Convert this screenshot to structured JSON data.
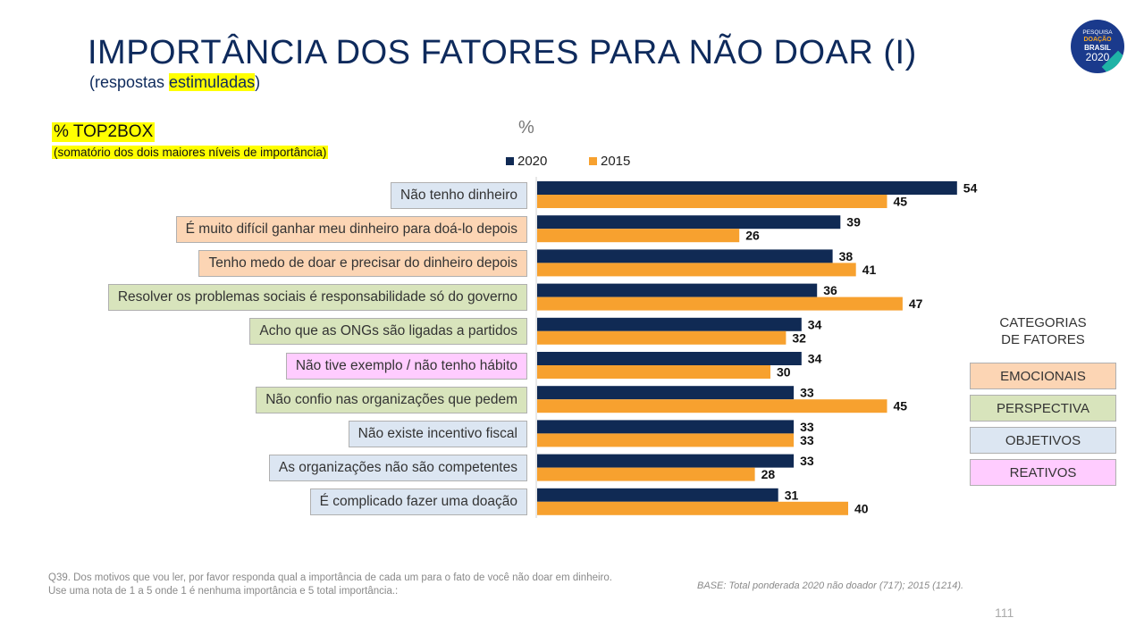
{
  "header": {
    "title": "IMPORTÂNCIA DOS FATORES PARA NÃO DOAR (I)",
    "subtitle_open": "(respostas ",
    "subtitle_highlight": "estimuladas",
    "subtitle_close": ")"
  },
  "logo": {
    "line1": "PESQUISA",
    "line2": "DOAÇÃO",
    "line3": "BRASIL",
    "line4": "2020"
  },
  "measure": {
    "label": "% TOP2BOX",
    "sublabel": "(somatório dos dois maiores níveis de importância)"
  },
  "chart_data": {
    "type": "bar",
    "orientation": "horizontal",
    "unit_label": "%",
    "categories": [
      "Não tenho dinheiro",
      "É muito difícil ganhar meu dinheiro para doá-lo depois",
      "Tenho medo de doar e precisar do dinheiro depois",
      "Resolver os problemas sociais é responsabilidade só do governo",
      "Acho que as ONGs são ligadas a partidos",
      "Não tive exemplo / não tenho hábito",
      "Não confio nas organizações que pedem",
      "Não existe incentivo fiscal",
      "As organizações não são competentes",
      "É complicado fazer uma doação"
    ],
    "category_groups": [
      "objetivos",
      "emocionais",
      "emocionais",
      "perspectiva",
      "perspectiva",
      "reativos",
      "perspectiva",
      "objetivos",
      "objetivos",
      "objetivos"
    ],
    "series": [
      {
        "name": "2020",
        "color": "#102a54",
        "values": [
          54,
          39,
          38,
          36,
          34,
          34,
          33,
          33,
          33,
          31
        ]
      },
      {
        "name": "2015",
        "color": "#f7a12f",
        "values": [
          45,
          26,
          41,
          47,
          32,
          30,
          45,
          33,
          28,
          40
        ]
      }
    ],
    "xlim": [
      0,
      60
    ],
    "legend_position": "top",
    "grid": false
  },
  "categories_legend": {
    "title_line1": "CATEGORIAS",
    "title_line2": "DE FATORES",
    "items": [
      {
        "key": "emocionais",
        "label": "EMOCIONAIS",
        "color": "#fcd5b4"
      },
      {
        "key": "perspectiva",
        "label": "PERSPECTIVA",
        "color": "#d8e4bc"
      },
      {
        "key": "objetivos",
        "label": "OBJETIVOS",
        "color": "#dce6f2"
      },
      {
        "key": "reativos",
        "label": "REATIVOS",
        "color": "#ffccff"
      }
    ]
  },
  "footnotes": {
    "question": "Q39. Dos motivos que vou ler, por favor responda qual a importância de cada um para o fato de você não doar em dinheiro. Use uma nota de 1 a 5 onde 1 é nenhuma importância e 5 total importância.:",
    "base": "BASE: Total ponderada 2020 não doador (717); 2015 (1214)."
  },
  "page_number": "111"
}
